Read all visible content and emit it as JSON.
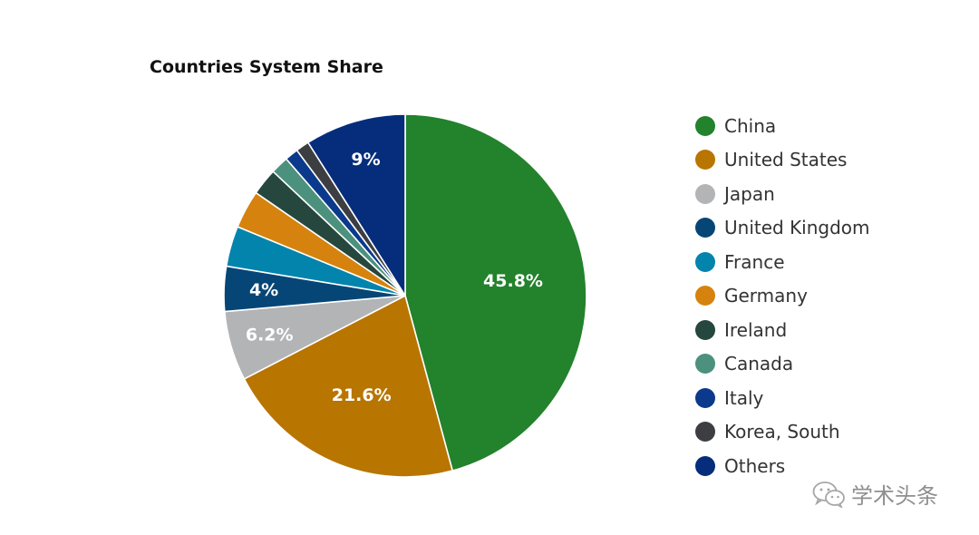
{
  "chart_data": {
    "type": "pie",
    "title": "Countries System Share",
    "slices": [
      {
        "label": "China",
        "value": 45.8,
        "color": "#23822c",
        "display": "45.8%"
      },
      {
        "label": "United States",
        "value": 21.6,
        "color": "#b87500",
        "display": "21.6%"
      },
      {
        "label": "Japan",
        "value": 6.2,
        "color": "#b3b4b6",
        "display": "6.2%"
      },
      {
        "label": "United Kingdom",
        "value": 4.0,
        "color": "#064676",
        "display": "4%"
      },
      {
        "label": "France",
        "value": 3.6,
        "color": "#0384ad",
        "display": ""
      },
      {
        "label": "Germany",
        "value": 3.4,
        "color": "#d5830e",
        "display": ""
      },
      {
        "label": "Ireland",
        "value": 2.4,
        "color": "#26473d",
        "display": ""
      },
      {
        "label": "Canada",
        "value": 1.6,
        "color": "#4b917e",
        "display": ""
      },
      {
        "label": "Italy",
        "value": 1.2,
        "color": "#0b3a8c",
        "display": ""
      },
      {
        "label": "Korea, South",
        "value": 1.2,
        "color": "#3d3e42",
        "display": ""
      },
      {
        "label": "Others",
        "value": 9.0,
        "color": "#052d7c",
        "display": "9%"
      }
    ],
    "start_angle_deg": 0,
    "direction": "clockwise",
    "legend_position": "right"
  },
  "watermark": {
    "text": "学术头条",
    "icon": "wechat-icon"
  }
}
